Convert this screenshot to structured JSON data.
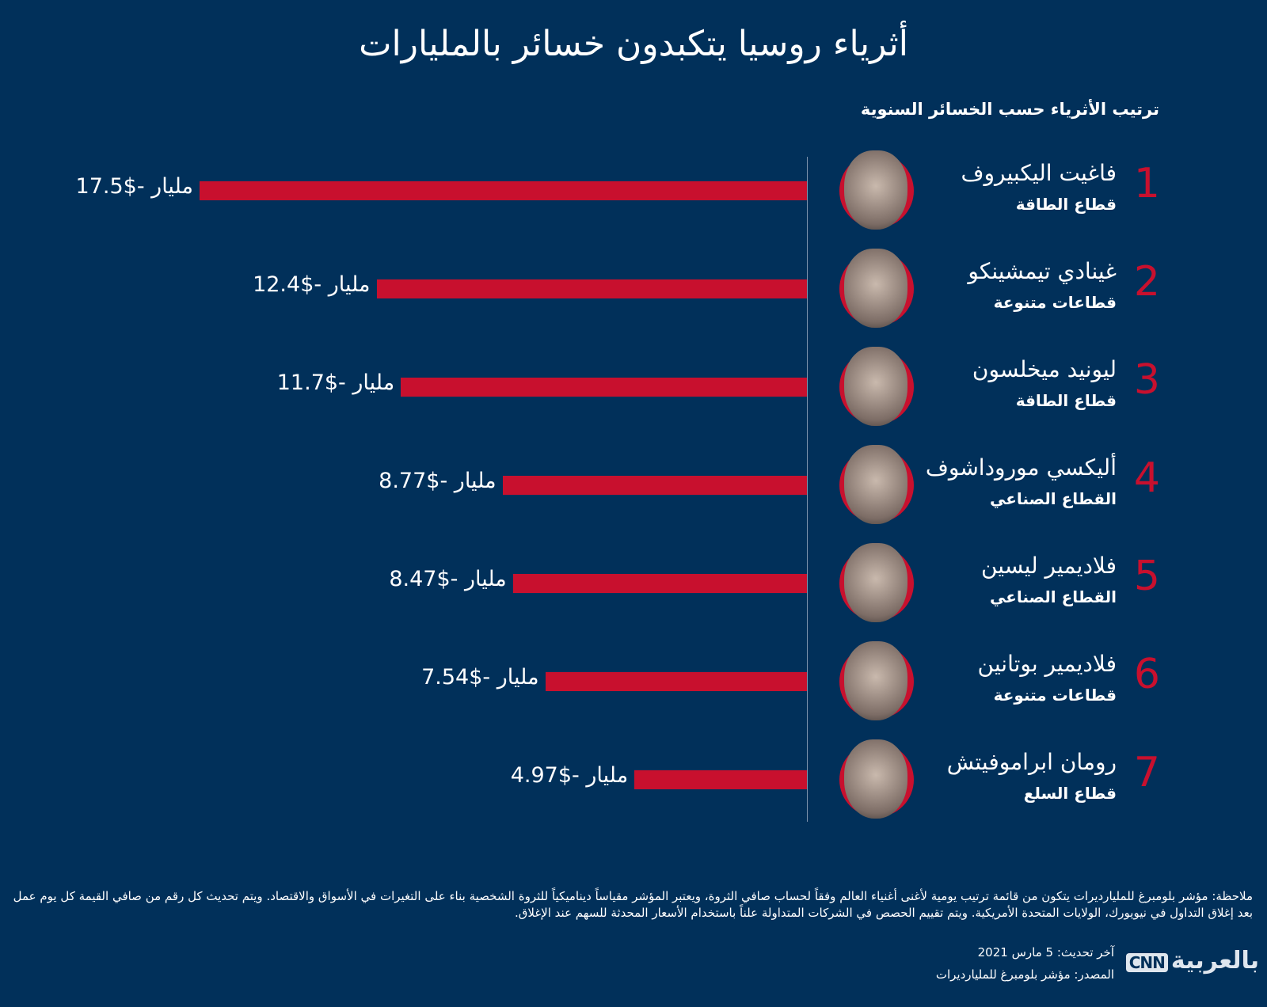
{
  "title": "أثرياء روسيا يتكبدون خسائر بالمليارات",
  "chart_data": {
    "type": "bar",
    "orientation": "horizontal",
    "title": "أثرياء روسيا يتكبدون خسائر بالمليارات",
    "subtitle": "ترتيب الأثرياء حسب الخسائر السنوية",
    "unit": "مليار",
    "bar_color": "#c8102e",
    "background": "#01305a",
    "rows": [
      {
        "rank": "1",
        "name": "فاغيت اليكبيروف",
        "sector": "قطاع الطاقة",
        "value": -17.5,
        "label": "-$17.5"
      },
      {
        "rank": "2",
        "name": "غينادي تيمشينكو",
        "sector": "قطاعات متنوعة",
        "value": -12.4,
        "label": "-$12.4"
      },
      {
        "rank": "3",
        "name": "ليونيد ميخلسون",
        "sector": "قطاع الطاقة",
        "value": -11.7,
        "label": "-$11.7"
      },
      {
        "rank": "4",
        "name": "أليكسي موروداشوف",
        "sector": "القطاع الصناعي",
        "value": -8.77,
        "label": "-$8.77"
      },
      {
        "rank": "5",
        "name": "فلاديمير ليسين",
        "sector": "القطاع الصناعي",
        "value": -8.47,
        "label": "-$8.47"
      },
      {
        "rank": "6",
        "name": "فلاديمير بوتانين",
        "sector": "قطاعات متنوعة",
        "value": -7.54,
        "label": "-$7.54"
      },
      {
        "rank": "7",
        "name": "رومان ابراموفيتش",
        "sector": "قطاع السلع",
        "value": -4.97,
        "label": "-$4.97"
      }
    ]
  },
  "footer": {
    "note": "ملاحظة: مؤشر بلومبرغ للمليارديرات يتكون من قائمة ترتيب يومية لأغنى أغنياء العالم وفقاً لحساب صافي الثروة، ويعتبر المؤشر مقياساً ديناميكياً للثروة الشخصية بناء على التغيرات في الأسواق والاقتصاد. ويتم تحديث كل رقم من صافي القيمة كل يوم عمل بعد إغلاق التداول في نيويورك، الولايات المتحدة الأمريكية. ويتم تقييم الحصص في الشركات المتداولة علناً باستخدام الأسعار المحدثة للسهم عند الإغلاق.",
    "updated": "آخر تحديث: 5 مارس 2021",
    "source": "المصدر: مؤشر بلومبرغ للمليارديرات",
    "logo_text": "بالعربية",
    "logo_cnn": "CNN"
  }
}
